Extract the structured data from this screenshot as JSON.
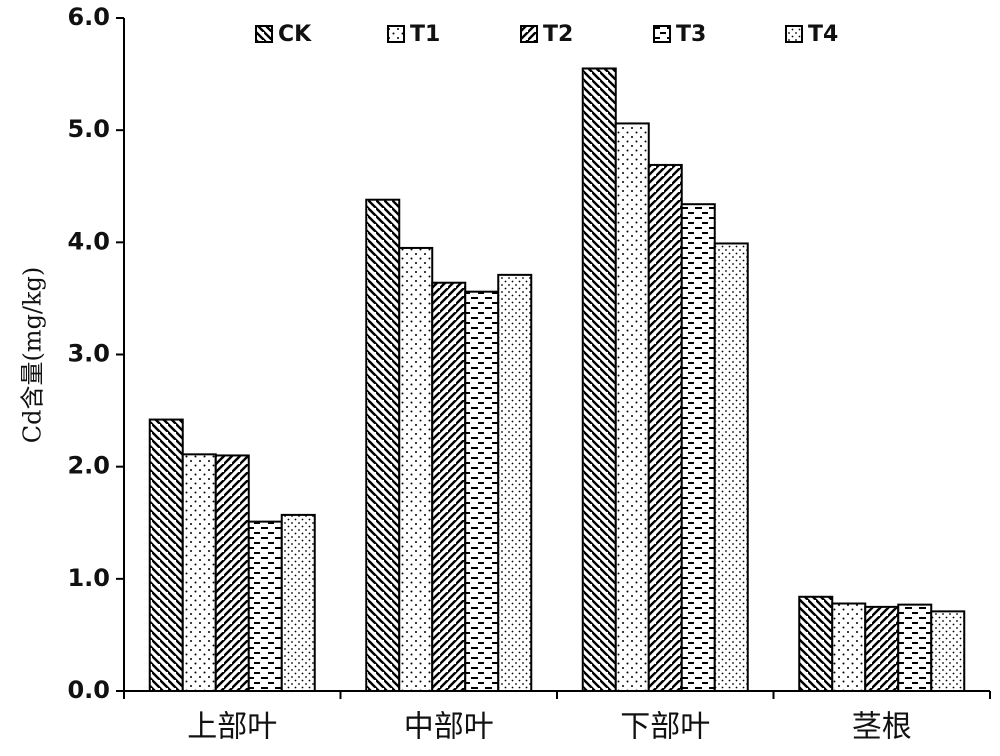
{
  "chart_data": {
    "type": "bar",
    "title": "",
    "xlabel": "",
    "ylabel": "Cd含量(mg/kg)",
    "ylim": [
      0,
      6
    ],
    "yticks": [
      "0.0",
      "1.0",
      "2.0",
      "3.0",
      "4.0",
      "5.0",
      "6.0"
    ],
    "grid": false,
    "legend_position": "top",
    "categories": [
      "上部叶",
      "中部叶",
      "下部叶",
      "茎根"
    ],
    "series": [
      {
        "name": "CK",
        "pattern": "diagonal-back",
        "values": [
          2.42,
          4.38,
          5.55,
          0.84
        ]
      },
      {
        "name": "T1",
        "pattern": "dots",
        "values": [
          2.11,
          3.95,
          5.06,
          0.78
        ]
      },
      {
        "name": "T2",
        "pattern": "diagonal-forward",
        "values": [
          2.1,
          3.64,
          4.69,
          0.75
        ]
      },
      {
        "name": "T3",
        "pattern": "dashes",
        "values": [
          1.51,
          3.56,
          4.34,
          0.77
        ]
      },
      {
        "name": "T4",
        "pattern": "fine-dots",
        "values": [
          1.57,
          3.71,
          3.99,
          0.71
        ]
      }
    ],
    "colors": {
      "stroke": "#000000",
      "fill": "#ffffff"
    }
  }
}
